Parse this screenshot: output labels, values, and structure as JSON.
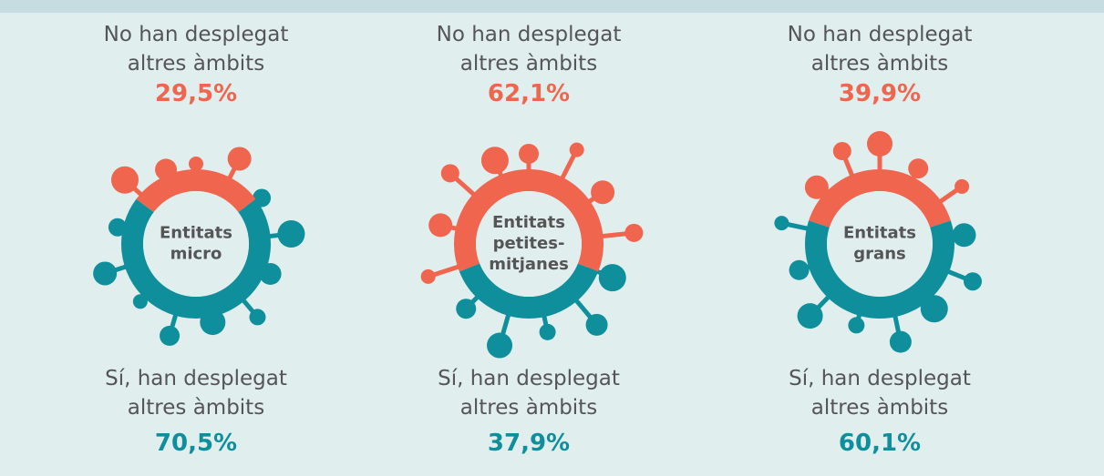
{
  "chart_data": [
    {
      "type": "donut",
      "center_label": [
        "Entitats",
        "micro"
      ],
      "categories": [
        "No han desplegat altres àmbits",
        "Sí, han desplegat altres àmbits"
      ],
      "values": [
        29.5,
        70.5
      ],
      "value_labels": [
        "29,5%",
        "70,5%"
      ],
      "colors": [
        "#f0654e",
        "#0f8f9c"
      ]
    },
    {
      "type": "donut",
      "center_label": [
        "Entitats",
        "petites-",
        "mitjanes"
      ],
      "categories": [
        "No han desplegat altres àmbits",
        "Sí, han desplegat altres àmbits"
      ],
      "values": [
        62.1,
        37.9
      ],
      "value_labels": [
        "62,1%",
        "37,9%"
      ],
      "colors": [
        "#f0654e",
        "#0f8f9c"
      ]
    },
    {
      "type": "donut",
      "center_label": [
        "Entitats",
        "grans"
      ],
      "categories": [
        "No han desplegat altres àmbits",
        "Sí, han desplegat altres àmbits"
      ],
      "values": [
        39.9,
        60.1
      ],
      "value_labels": [
        "39,9%",
        "60,1%"
      ],
      "colors": [
        "#f0654e",
        "#0f8f9c"
      ]
    }
  ]
}
